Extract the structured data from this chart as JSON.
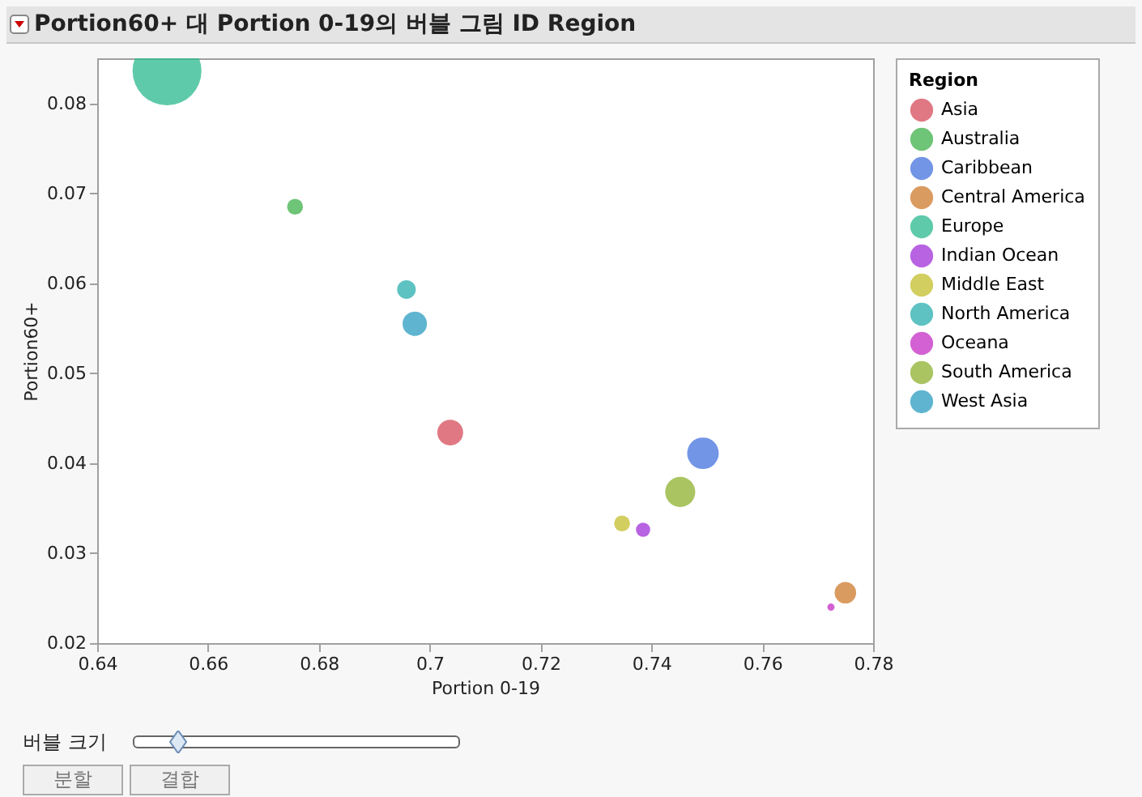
{
  "chart_data": {
    "type": "bubble",
    "title": "Portion60+ 대 Portion 0-19의 버블 그림 ID Region",
    "xlabel": "Portion 0-19",
    "ylabel": "Portion60+",
    "legend_title": "Region",
    "legend": "right",
    "grid": false,
    "xlim": [
      0.64,
      0.78
    ],
    "xticks": [
      0.64,
      0.66,
      0.68,
      0.7,
      0.72,
      0.74,
      0.76,
      0.78
    ],
    "ylim": [
      0.02,
      0.085
    ],
    "yticks": [
      0.02,
      0.03,
      0.04,
      0.05,
      0.06,
      0.07,
      0.08
    ],
    "series": [
      {
        "name": "Asia",
        "color": "#d64b5a",
        "x": [
          0.7037
        ],
        "values": [
          0.0434
        ],
        "sizes": [
          0.14
        ]
      },
      {
        "name": "Australia",
        "color": "#3db04a",
        "x": [
          0.6757
        ],
        "values": [
          0.0685
        ],
        "sizes": [
          0.053
        ]
      },
      {
        "name": "Caribbean",
        "color": "#4472de",
        "x": [
          0.7493
        ],
        "values": [
          0.0411
        ],
        "sizes": [
          0.21
        ]
      },
      {
        "name": "Central America",
        "color": "#cd7a2b",
        "x": [
          0.775
        ],
        "values": [
          0.0256
        ],
        "sizes": [
          0.098
        ]
      },
      {
        "name": "Europe",
        "color": "#2ab88c",
        "x": [
          0.6526
        ],
        "values": [
          0.0836
        ],
        "sizes": [
          1
        ]
      },
      {
        "name": "Indian Ocean",
        "color": "#a02fd8",
        "x": [
          0.7385
        ],
        "values": [
          0.0326
        ],
        "sizes": [
          0.043
        ]
      },
      {
        "name": "Middle East",
        "color": "#c3bd2b",
        "x": [
          0.7347
        ],
        "values": [
          0.0333
        ],
        "sizes": [
          0.053
        ]
      },
      {
        "name": "North America",
        "color": "#2aaeae",
        "x": [
          0.6958
        ],
        "values": [
          0.0593
        ],
        "sizes": [
          0.073
        ]
      },
      {
        "name": "Oceana",
        "color": "#c42cc4",
        "x": [
          0.7724
        ],
        "values": [
          0.024
        ],
        "sizes": [
          0.011
        ]
      },
      {
        "name": "South America",
        "color": "#8db02c",
        "x": [
          0.7452
        ],
        "values": [
          0.0368
        ],
        "sizes": [
          0.19
        ]
      },
      {
        "name": "West Asia",
        "color": "#2a9cc0",
        "x": [
          0.6973
        ],
        "values": [
          0.0555
        ],
        "sizes": [
          0.125
        ]
      }
    ],
    "annotations": [
      "버블 크기",
      "분할",
      "결합"
    ]
  }
}
